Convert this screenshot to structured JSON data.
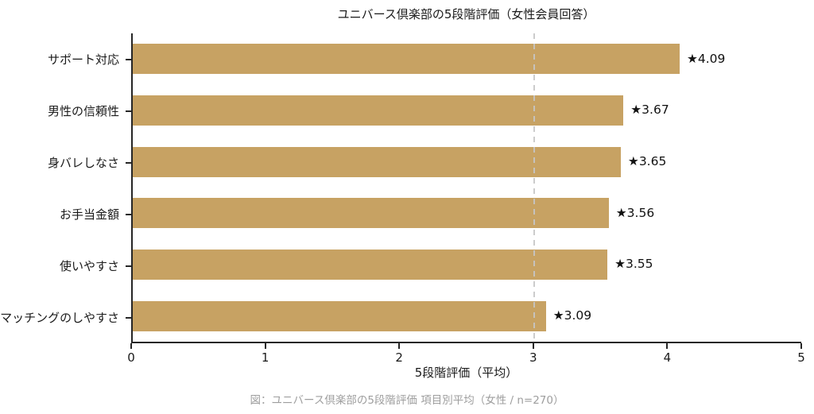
{
  "title": "ユニバース倶楽部の5段階評価（女性会員回答）",
  "caption": "図：ユニバース倶楽部の5段階評価 項目別平均（女性 / n=270）",
  "chart_data": {
    "type": "bar",
    "orientation": "horizontal",
    "title": "ユニバース倶楽部の5段階評価（女性会員回答）",
    "categories": [
      "サポート対応",
      "男性の信頼性",
      "身バレしなさ",
      "お手当金額",
      "使いやすさ",
      "マッチングのしやすさ"
    ],
    "values": [
      4.09,
      3.67,
      3.65,
      3.56,
      3.55,
      3.09
    ],
    "value_labels": [
      "★4.09",
      "★3.67",
      "★3.65",
      "★3.56",
      "★3.55",
      "★3.09"
    ],
    "xlabel": "5段階評価（平均）",
    "ylabel": "",
    "xlim": [
      0,
      5
    ],
    "x_ticks": [
      "0",
      "1",
      "2",
      "3",
      "4",
      "5"
    ],
    "reference_line_x": 3,
    "grid": false,
    "legend": "none",
    "colors": {
      "bar": "#c7a263",
      "axis": "#262626",
      "value_text": "#111111",
      "reference_line": "#c6c6c6",
      "caption_text": "#9e9e9e"
    }
  }
}
